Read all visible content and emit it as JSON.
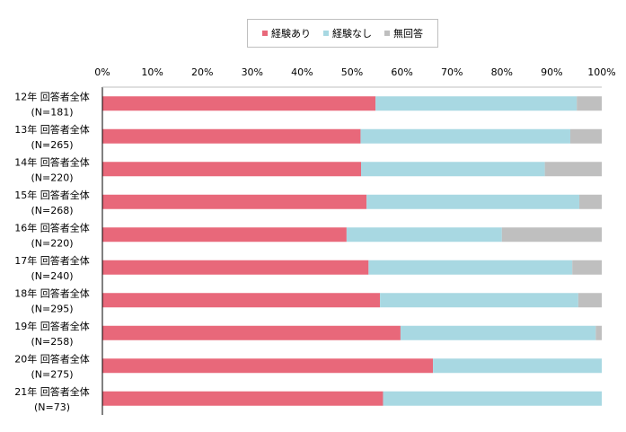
{
  "chart_data": {
    "type": "bar",
    "orientation": "horizontal",
    "stacked": true,
    "percent_scale": true,
    "xlim": [
      0,
      100
    ],
    "xticks": [
      "0%",
      "10%",
      "20%",
      "30%",
      "40%",
      "50%",
      "60%",
      "70%",
      "80%",
      "90%",
      "100%"
    ],
    "categories": [
      {
        "line1": "12年 回答者全体",
        "line2": "(N=181)"
      },
      {
        "line1": "13年 回答者全体",
        "line2": "(N=265)"
      },
      {
        "line1": "14年 回答者全体",
        "line2": "(N=220)"
      },
      {
        "line1": "15年 回答者全体",
        "line2": "(N=268)"
      },
      {
        "line1": "16年 回答者全体",
        "line2": "(N=220)"
      },
      {
        "line1": "17年 回答者全体",
        "line2": "(N=240)"
      },
      {
        "line1": "18年 回答者全体",
        "line2": "(N=295)"
      },
      {
        "line1": "19年 回答者全体",
        "line2": "(N=258)"
      },
      {
        "line1": "20年 回答者全体",
        "line2": "(N=275)"
      },
      {
        "line1": "21年 回答者全体",
        "line2": "(N=73)"
      }
    ],
    "series": [
      {
        "name": "経験あり",
        "color": "#e8687a",
        "values": [
          54.7,
          51.7,
          51.8,
          52.9,
          48.9,
          53.3,
          55.6,
          59.7,
          66.2,
          56.2
        ]
      },
      {
        "name": "経験なし",
        "color": "#a8d8e2",
        "values": [
          40.3,
          42.0,
          36.8,
          42.6,
          31.1,
          40.8,
          39.7,
          39.1,
          33.8,
          43.8
        ]
      },
      {
        "name": "無回答",
        "color": "#bfbfbf",
        "values": [
          5.0,
          6.3,
          11.4,
          4.5,
          20.0,
          5.9,
          4.7,
          1.2,
          0.0,
          0.0
        ]
      }
    ],
    "legend": "top-center",
    "grid": false
  }
}
